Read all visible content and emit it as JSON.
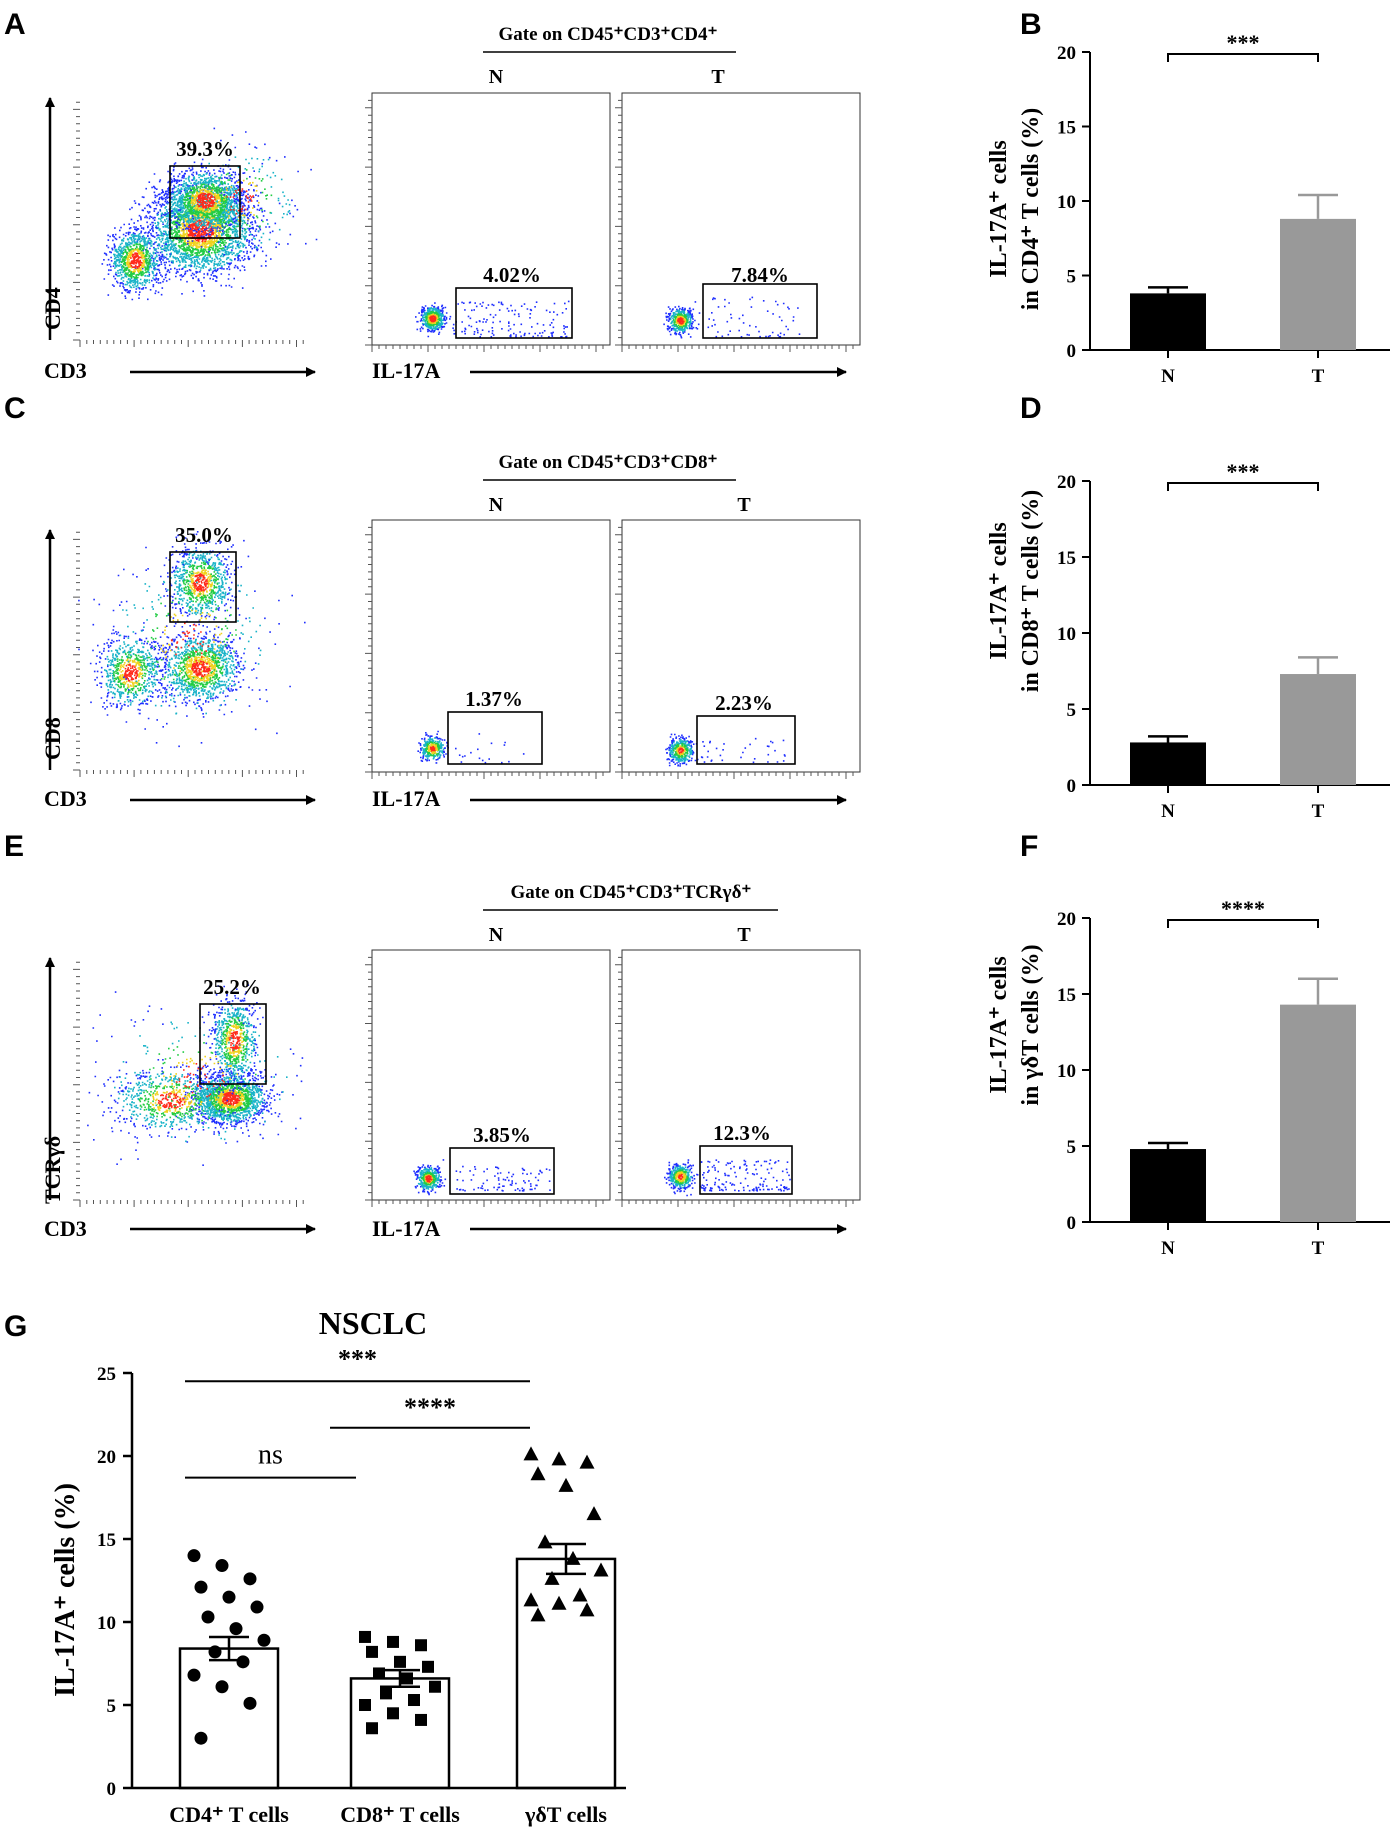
{
  "panel_letters": [
    "A",
    "B",
    "C",
    "D",
    "E",
    "F",
    "G"
  ],
  "chart_data": [
    {
      "panel": "A",
      "type": "scatter",
      "subtype": "flow-cytometry",
      "gate_title": "Gate on CD45⁺CD3⁺CD4⁺",
      "left_plot": {
        "xlabel": "CD3",
        "ylabel": "CD4",
        "gate_label": "39.3%"
      },
      "xlabel": "IL-17A",
      "plots": [
        {
          "name": "N",
          "gate_label": "4.02%"
        },
        {
          "name": "T",
          "gate_label": "7.84%"
        }
      ],
      "colors": {
        "low": "#1f2fff",
        "mid": "#22cc44",
        "high": "#ff2a1a"
      }
    },
    {
      "panel": "B",
      "type": "bar",
      "categories": [
        "N",
        "T"
      ],
      "values": [
        3.8,
        8.8
      ],
      "errors": [
        0.4,
        1.6
      ],
      "ylabel_line1": "IL-17A⁺ cells",
      "ylabel_line2": "in CD4⁺ T cells (%)",
      "ylim": [
        0,
        20
      ],
      "yticks": [
        0,
        5,
        10,
        15,
        20
      ],
      "significance": "***",
      "colors": [
        "#000000",
        "#999999"
      ]
    },
    {
      "panel": "C",
      "type": "scatter",
      "subtype": "flow-cytometry",
      "gate_title": "Gate on CD45⁺CD3⁺CD8⁺",
      "left_plot": {
        "xlabel": "CD3",
        "ylabel": "CD8",
        "gate_label": "35.0%"
      },
      "xlabel": "IL-17A",
      "plots": [
        {
          "name": "N",
          "gate_label": "1.37%"
        },
        {
          "name": "T",
          "gate_label": "2.23%"
        }
      ],
      "colors": {
        "low": "#1f2fff",
        "mid": "#22cc44",
        "high": "#ff2a1a"
      }
    },
    {
      "panel": "D",
      "type": "bar",
      "categories": [
        "N",
        "T"
      ],
      "values": [
        2.8,
        7.3
      ],
      "errors": [
        0.4,
        1.1
      ],
      "ylabel_line1": "IL-17A⁺ cells",
      "ylabel_line2": "in CD8⁺ T cells (%)",
      "ylim": [
        0,
        20
      ],
      "yticks": [
        0,
        5,
        10,
        15,
        20
      ],
      "significance": "***",
      "colors": [
        "#000000",
        "#999999"
      ]
    },
    {
      "panel": "E",
      "type": "scatter",
      "subtype": "flow-cytometry",
      "gate_title": "Gate on CD45⁺CD3⁺TCRγδ⁺",
      "left_plot": {
        "xlabel": "CD3",
        "ylabel": "TCRγδ",
        "gate_label": "25.2%"
      },
      "xlabel": "IL-17A",
      "plots": [
        {
          "name": "N",
          "gate_label": "3.85%"
        },
        {
          "name": "T",
          "gate_label": "12.3%"
        }
      ],
      "colors": {
        "low": "#1f2fff",
        "mid": "#22cc44",
        "high": "#ff2a1a"
      }
    },
    {
      "panel": "F",
      "type": "bar",
      "categories": [
        "N",
        "T"
      ],
      "values": [
        4.8,
        14.3
      ],
      "errors": [
        0.4,
        1.7
      ],
      "ylabel_line1": "IL-17A⁺ cells",
      "ylabel_line2": "in γδT  cells (%)",
      "ylim": [
        0,
        20
      ],
      "yticks": [
        0,
        5,
        10,
        15,
        20
      ],
      "significance": "****",
      "colors": [
        "#000000",
        "#999999"
      ]
    },
    {
      "panel": "G",
      "type": "bar",
      "title": "NSCLC",
      "categories": [
        "CD4⁺ T cells",
        "CD8⁺ T cells",
        "γδT cells"
      ],
      "values": [
        8.4,
        6.6,
        13.8
      ],
      "errors": [
        0.7,
        0.5,
        0.9
      ],
      "ylabel": "IL-17A⁺ cells (%)",
      "ylim": [
        0,
        25
      ],
      "yticks": [
        0,
        5,
        10,
        15,
        20,
        25
      ],
      "points": [
        [
          14,
          13.4,
          12.6,
          12.1,
          11.5,
          10.9,
          10.3,
          9.6,
          8.9,
          8.2,
          7.6,
          6.8,
          6.1,
          5.1,
          3
        ],
        [
          9.1,
          8.8,
          8.6,
          8.2,
          7.6,
          7.3,
          6.9,
          6.6,
          6.1,
          5.7,
          5.3,
          5.0,
          4.5,
          4.1,
          3.6
        ],
        [
          20.1,
          19.8,
          19.6,
          18.9,
          18.2,
          16.5,
          14.8,
          13.8,
          13.1,
          12.6,
          11.6,
          11.3,
          11.1,
          10.7,
          10.4
        ]
      ],
      "markers": [
        "circle",
        "square",
        "triangle"
      ],
      "comparisons": [
        {
          "from": 0,
          "to": 1,
          "label": "ns"
        },
        {
          "from": 1,
          "to": 2,
          "label": "****"
        },
        {
          "from": 0,
          "to": 2,
          "label": "***"
        }
      ]
    }
  ]
}
